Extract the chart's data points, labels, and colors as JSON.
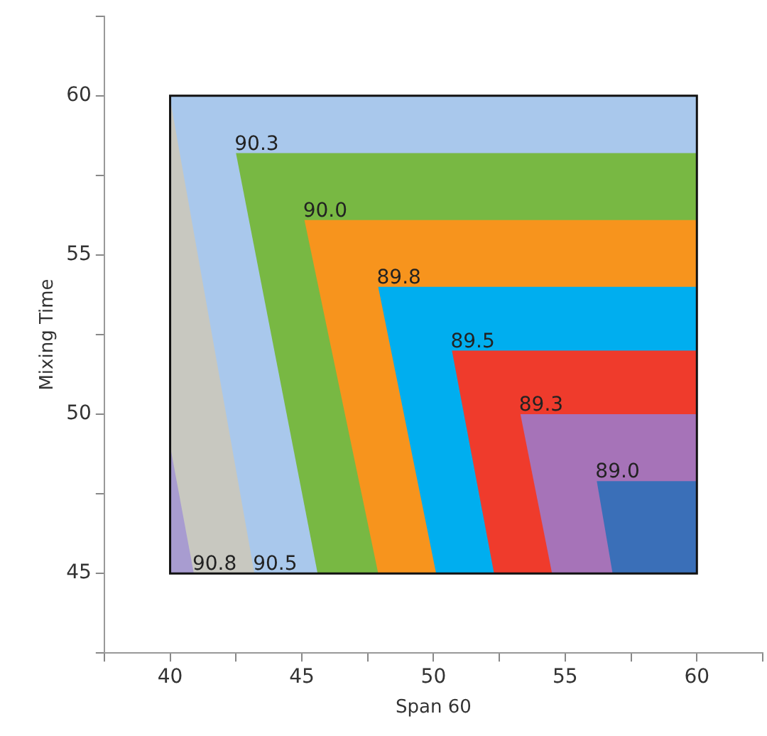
{
  "chart_data": {
    "type": "area",
    "xlabel": "Span 60",
    "ylabel": "Mixing Time",
    "xlim": [
      37.5,
      62.5
    ],
    "xticks": [
      {
        "value": 37.5,
        "label": null
      },
      40,
      {
        "value": 42.5,
        "label": null
      },
      45,
      {
        "value": 47.5,
        "label": null
      },
      50,
      {
        "value": 52.5,
        "label": null
      },
      55,
      {
        "value": 57.5,
        "label": null
      },
      60,
      {
        "value": 62.5,
        "label": null
      }
    ],
    "ylim": [
      42.5,
      62.5
    ],
    "yticks": [
      {
        "value": 42.5,
        "label": null
      },
      45,
      {
        "value": 47.5,
        "label": null
      },
      50,
      {
        "value": 52.5,
        "label": null
      },
      55,
      {
        "value": 57.5,
        "label": null
      },
      60,
      {
        "value": 62.5,
        "label": null
      }
    ],
    "bands": [
      {
        "axis": "y",
        "from": 45,
        "to": 60,
        "color": "#a9c8ec"
      }
    ],
    "series": [
      {
        "name": "90.3",
        "color": "#78b843",
        "x": [
          45.6,
          42.5,
          60
        ],
        "values": [
          45,
          58.2,
          58.2
        ]
      },
      {
        "name": "90.0",
        "color": "#f7941d",
        "x": [
          47.9,
          45.1,
          60
        ],
        "values": [
          45,
          56.1,
          56.1
        ]
      },
      {
        "name": "89.8",
        "color": "#00aeef",
        "x": [
          50.1,
          47.9,
          60
        ],
        "values": [
          45,
          54.0,
          54.0
        ]
      },
      {
        "name": "89.5",
        "color": "#ef3b2c",
        "x": [
          52.3,
          50.7,
          60
        ],
        "values": [
          45,
          52.0,
          52.0
        ]
      },
      {
        "name": "89.3",
        "color": "#a673b8",
        "x": [
          54.5,
          53.3,
          60
        ],
        "values": [
          45,
          50.0,
          50.0
        ]
      },
      {
        "name": "89.0",
        "color": "#3a6fb8",
        "x": [
          56.8,
          56.2,
          60
        ],
        "values": [
          45,
          47.9,
          47.9
        ]
      },
      {
        "name": "90.5",
        "color": "#c8c8c0",
        "x": [
          40,
          43.2
        ],
        "values": [
          59.9,
          45
        ]
      },
      {
        "name": "90.8",
        "color": "#a89cd0",
        "x": [
          40,
          40.9
        ],
        "values": [
          49.0,
          45
        ]
      }
    ],
    "grid": false,
    "legend": false
  }
}
